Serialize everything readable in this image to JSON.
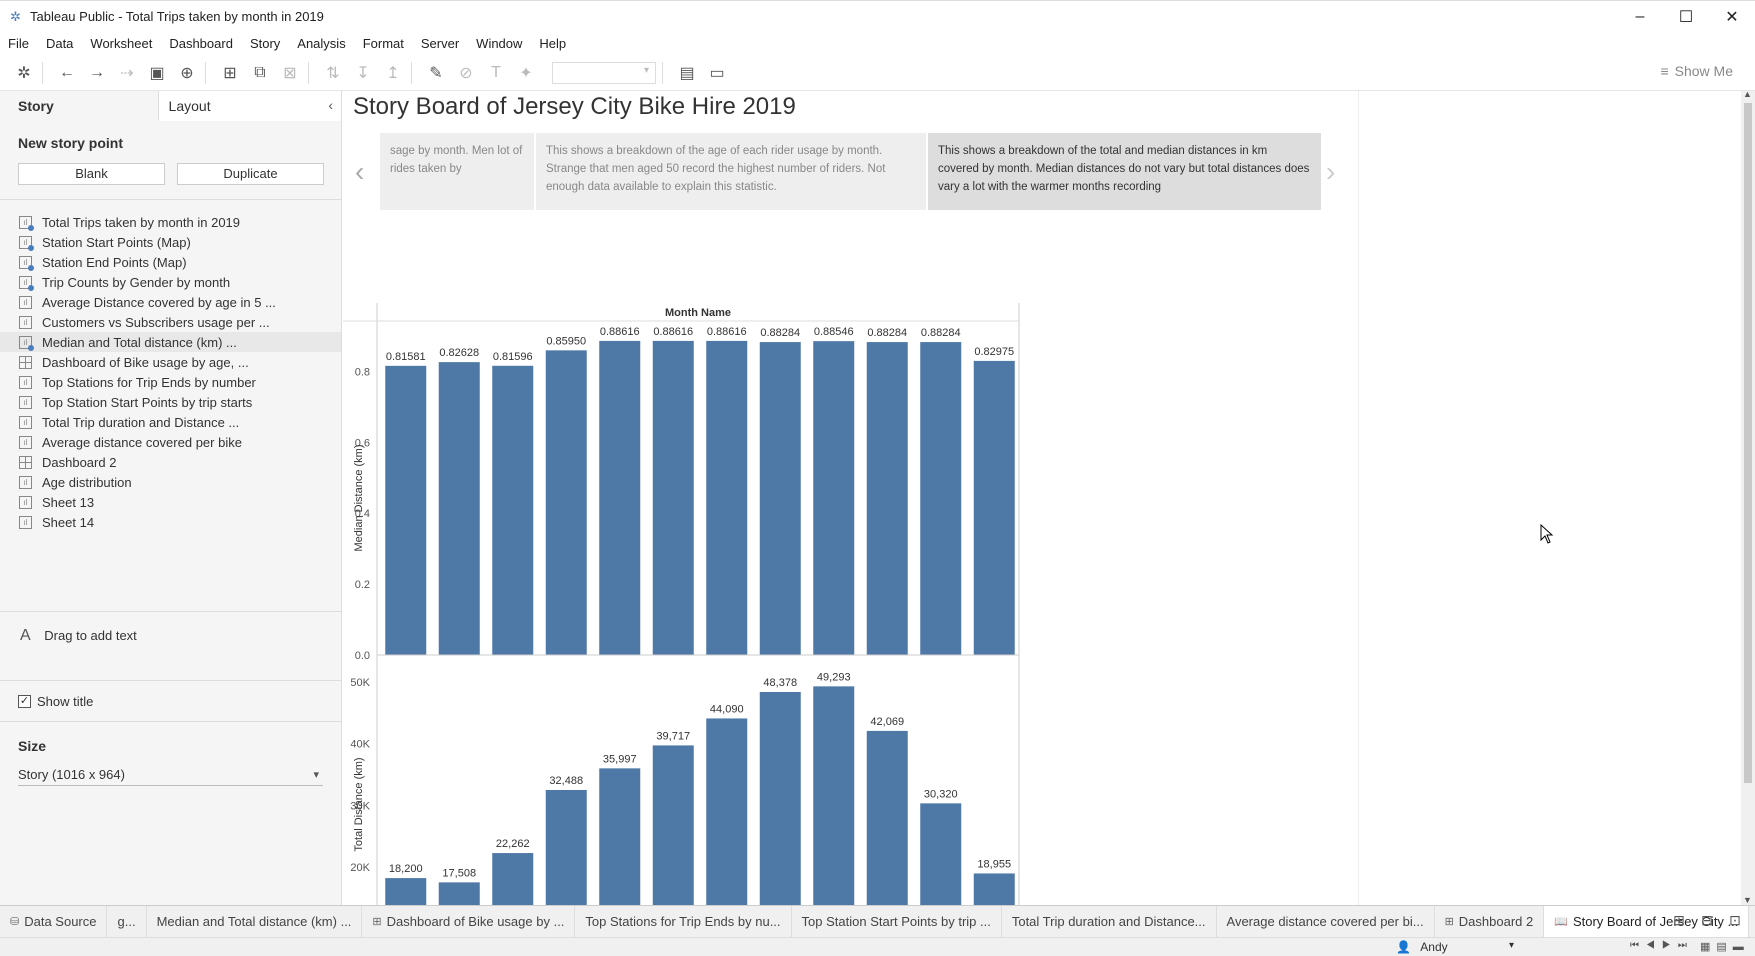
{
  "window": {
    "title": "Tableau Public - Total Trips taken by month in 2019"
  },
  "menu": [
    "File",
    "Data",
    "Worksheet",
    "Dashboard",
    "Story",
    "Analysis",
    "Format",
    "Server",
    "Window",
    "Help"
  ],
  "toolbar": {
    "show_me": "Show Me"
  },
  "left_panel": {
    "tabs": {
      "story": "Story",
      "layout": "Layout"
    },
    "new_story_point": "New story point",
    "blank_button": "Blank",
    "duplicate_button": "Duplicate",
    "sheets": [
      {
        "label": "Total Trips taken by month in 2019",
        "kind": "sheet",
        "dot": true
      },
      {
        "label": "Station Start Points (Map)",
        "kind": "sheet",
        "dot": true
      },
      {
        "label": "Station End Points (Map)",
        "kind": "sheet",
        "dot": true
      },
      {
        "label": "Trip Counts by Gender by month",
        "kind": "sheet",
        "dot": true
      },
      {
        "label": "Average Distance covered by age in 5 ...",
        "kind": "sheet",
        "dot": false
      },
      {
        "label": "Customers vs Subscribers usage per ...",
        "kind": "sheet",
        "dot": false
      },
      {
        "label": "Median and Total distance (km) ...",
        "kind": "sheet",
        "dot": true
      },
      {
        "label": "Dashboard of  Bike usage by age, ...",
        "kind": "dashboard",
        "dot": false
      },
      {
        "label": "Top Stations for Trip Ends by number",
        "kind": "sheet",
        "dot": false
      },
      {
        "label": "Top Station Start Points by trip starts",
        "kind": "sheet",
        "dot": false
      },
      {
        "label": "Total Trip duration and Distance ...",
        "kind": "sheet",
        "dot": false
      },
      {
        "label": "Average distance covered per bike",
        "kind": "sheet",
        "dot": false
      },
      {
        "label": "Dashboard 2",
        "kind": "dashboard",
        "dot": false
      },
      {
        "label": "Age distribution",
        "kind": "sheet",
        "dot": false
      },
      {
        "label": "Sheet 13",
        "kind": "sheet",
        "dot": false
      },
      {
        "label": "Sheet 14",
        "kind": "sheet",
        "dot": false
      }
    ],
    "drag_text": "Drag to add text",
    "show_title": "Show title",
    "size_label": "Size",
    "size_value": "Story (1016 x 964)"
  },
  "story": {
    "title": "Story Board of Jersey City Bike Hire 2019",
    "captions": [
      "sage by month. Men lot of rides taken by",
      "This shows a breakdown of the age of each rider usage by month. Strange that men aged 50 record the highest number of riders. Not enough data available to explain this statistic.",
      "This shows a breakdown of the total  and median distances in km covered by month. Median distances do not vary but total distances does vary a lot with the warmer months recording"
    ]
  },
  "chart_data": [
    {
      "type": "bar",
      "title": "",
      "xlabel": "Month Name",
      "ylabel": "Median Distance  (km)",
      "ylim": [
        0,
        0.9
      ],
      "yticks": [
        "0.0",
        "0.2",
        "0.4",
        "0.6",
        "0.8"
      ],
      "values": [
        0.81581,
        0.82628,
        0.81596,
        0.8595,
        0.88616,
        0.88616,
        0.88616,
        0.88284,
        0.88546,
        0.88284,
        0.88284,
        0.82975
      ],
      "labels": [
        "0.81581",
        "0.82628",
        "0.81596",
        "0.85950",
        "0.88616",
        "0.88616",
        "0.88616",
        "0.88284",
        "0.88546",
        "0.88284",
        "0.88284",
        "0.82975"
      ],
      "color": "#4e79a7"
    },
    {
      "type": "bar",
      "title": "",
      "xlabel": "",
      "ylabel": "Total Distance  (km)",
      "yticks": [
        "20K",
        "30K",
        "40K",
        "50K"
      ],
      "values": [
        18200,
        17508,
        22262,
        32488,
        35997,
        39717,
        44090,
        48378,
        49293,
        42069,
        30320,
        18955
      ],
      "labels": [
        "18,200",
        "17,508",
        "22,262",
        "32,488",
        "35,997",
        "39,717",
        "44,090",
        "48,378",
        "49,293",
        "42,069",
        "30,320",
        "18,955"
      ],
      "color": "#4e79a7"
    }
  ],
  "bottom_tabs": [
    {
      "label": "Data Source",
      "icon": "db",
      "active": false
    },
    {
      "label": "g...",
      "icon": "",
      "active": false
    },
    {
      "label": "Median and Total distance (km) ...",
      "icon": "",
      "active": false
    },
    {
      "label": "Dashboard of  Bike usage by ...",
      "icon": "grid",
      "active": false
    },
    {
      "label": "Top Stations for Trip Ends by nu...",
      "icon": "",
      "active": false
    },
    {
      "label": "Top Station Start Points by trip ...",
      "icon": "",
      "active": false
    },
    {
      "label": "Total Trip duration and Distance...",
      "icon": "",
      "active": false
    },
    {
      "label": "Average distance covered per bi...",
      "icon": "",
      "active": false
    },
    {
      "label": "Dashboard 2",
      "icon": "grid",
      "active": false
    },
    {
      "label": "Story Board of Jersey City ...",
      "icon": "book",
      "active": true
    }
  ],
  "status": {
    "user": "Andy"
  }
}
